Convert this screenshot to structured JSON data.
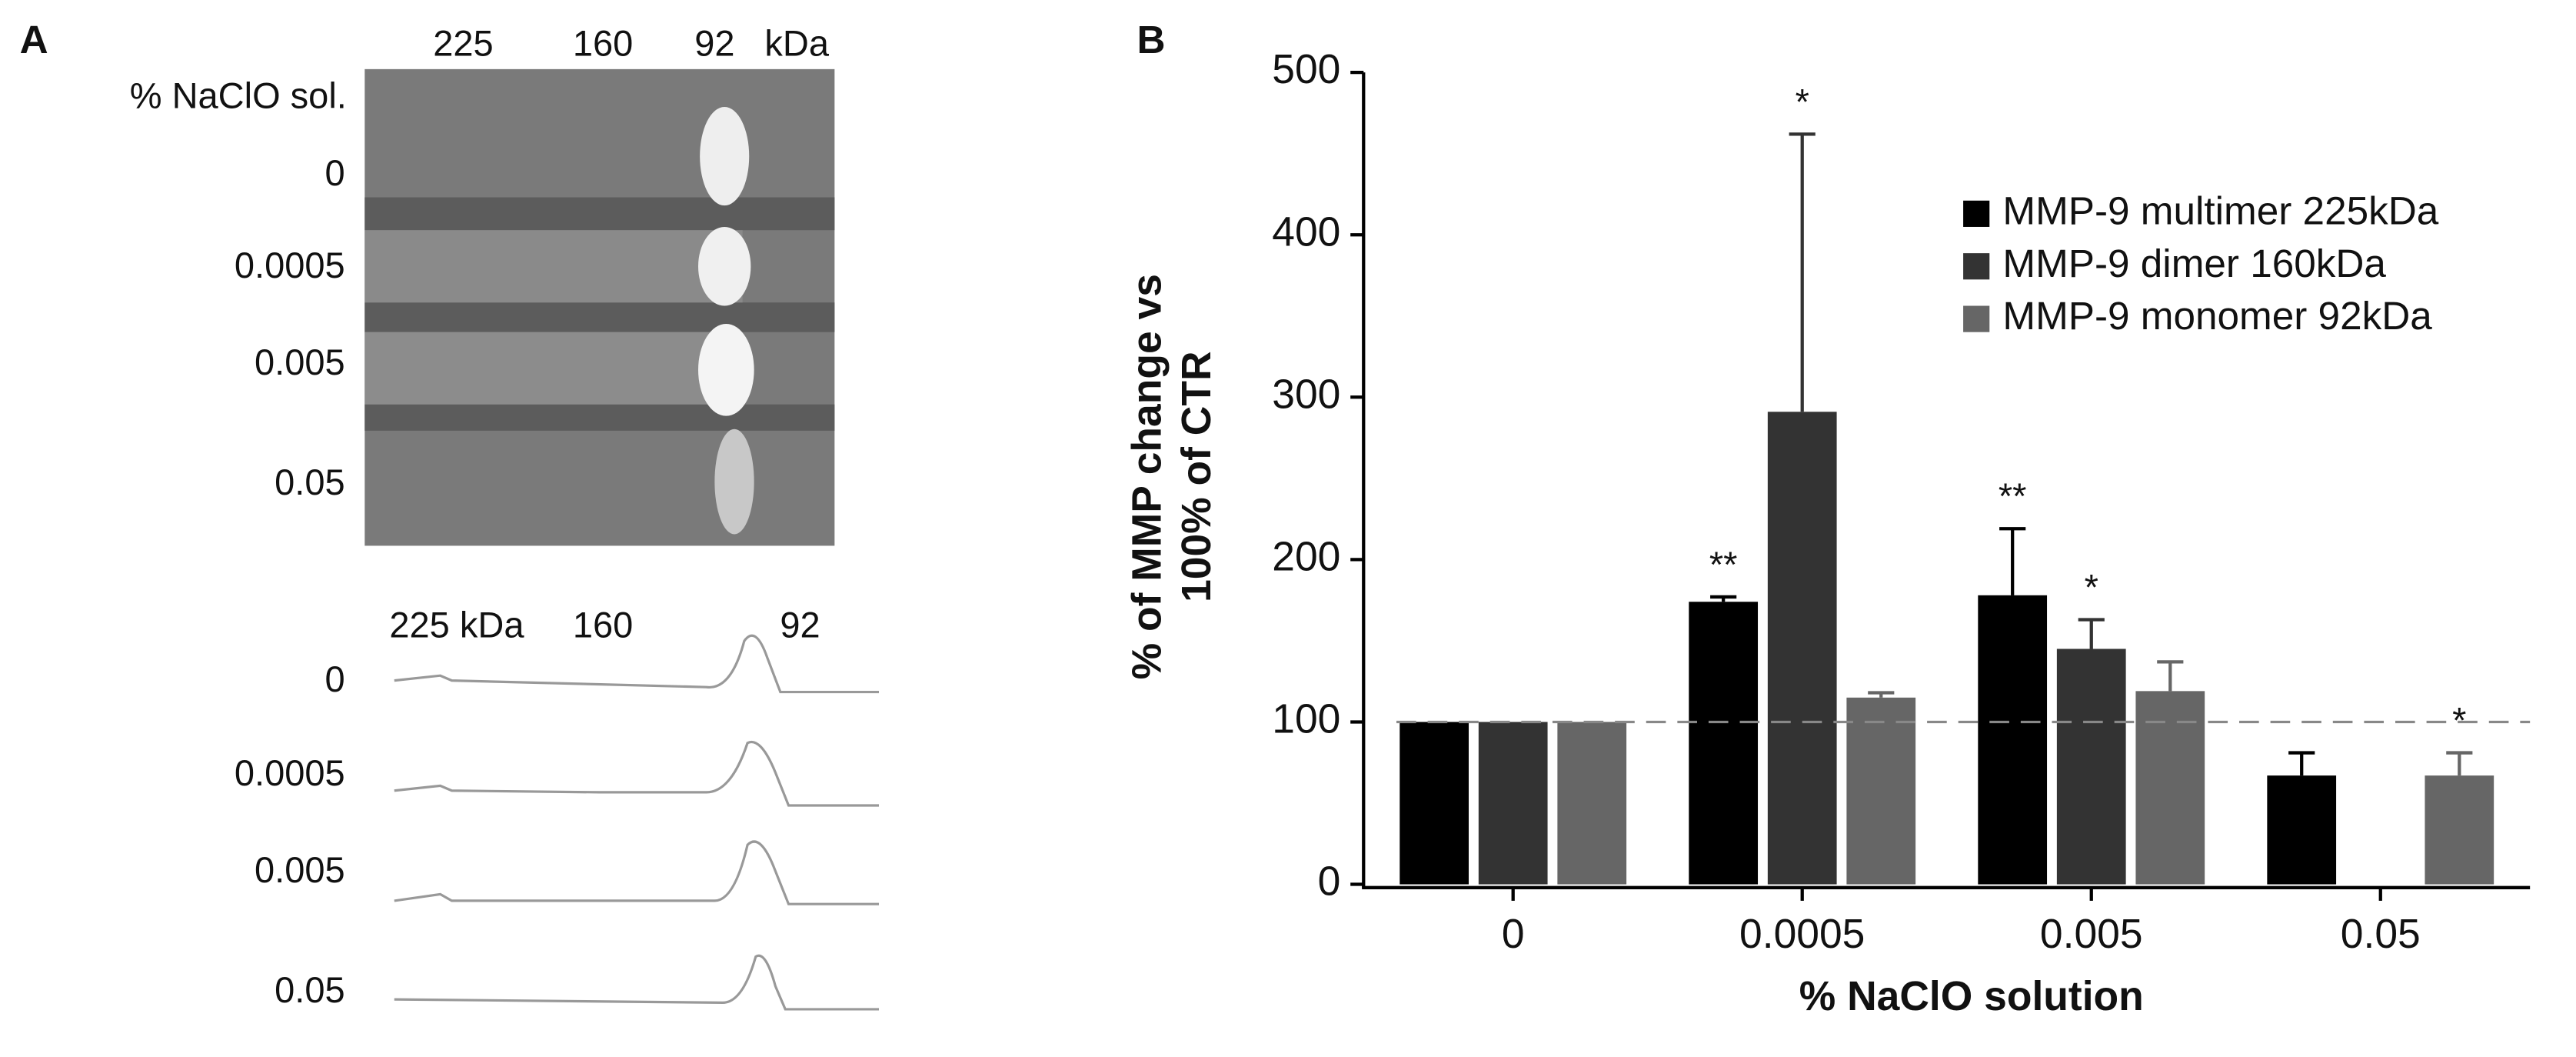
{
  "panel_a": {
    "label": "A",
    "gel": {
      "markers": [
        "225",
        "160",
        "92"
      ],
      "unit": "kDa",
      "row_title": "% NaClO sol.",
      "rows": [
        "0",
        "0.0005",
        "0.005",
        "0.05"
      ]
    },
    "traces": {
      "markers": [
        "225 kDa",
        "160",
        "92"
      ],
      "rows": [
        "0",
        "0.0005",
        "0.005",
        "0.05"
      ]
    }
  },
  "chart_data": {
    "type": "bar",
    "panel_label": "B",
    "x_label": "% NaClO solution",
    "y_label": [
      "% of MMP change vs",
      "100% of CTR"
    ],
    "categories": [
      "0",
      "0.0005",
      "0.005",
      "0.05"
    ],
    "series": [
      {
        "name": "MMP-9 multimer 225kDa",
        "color": "#000000",
        "values": [
          100,
          174,
          178,
          67
        ],
        "errors": [
          null,
          3,
          41,
          14
        ],
        "significance": [
          null,
          "**",
          "**",
          null
        ]
      },
      {
        "name": "MMP-9 dimer 160kDa",
        "color": "#333333",
        "values": [
          100,
          291,
          145,
          null
        ],
        "errors": [
          null,
          171,
          18,
          null
        ],
        "significance": [
          null,
          "*",
          "*",
          null
        ]
      },
      {
        "name": "MMP-9 monomer 92kDa",
        "color": "#666666",
        "values": [
          100,
          115,
          119,
          67
        ],
        "errors": [
          null,
          3,
          18,
          14
        ],
        "significance": [
          null,
          null,
          null,
          "*"
        ]
      }
    ],
    "ylim": [
      0,
      500
    ],
    "yticks": [
      0,
      100,
      200,
      300,
      400,
      500
    ],
    "reference_line": 100,
    "legend": "upper right",
    "grid": false
  }
}
